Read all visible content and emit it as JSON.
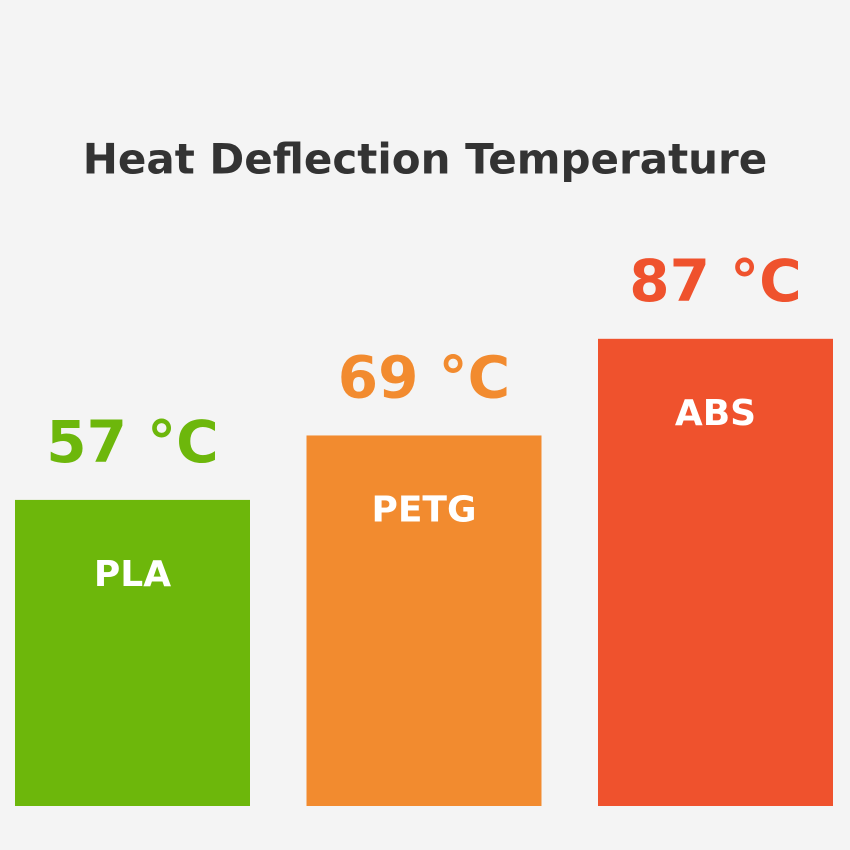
{
  "chart_data": {
    "type": "bar",
    "title": "Heat Deflection Temperature",
    "categories": [
      "PLA",
      "PETG",
      "ABS"
    ],
    "values": [
      57,
      69,
      87
    ],
    "value_labels": [
      "57 °C",
      "69 °C",
      "87 °C"
    ],
    "colors": [
      "#6db70b",
      "#f28b2f",
      "#ef522d"
    ]
  }
}
